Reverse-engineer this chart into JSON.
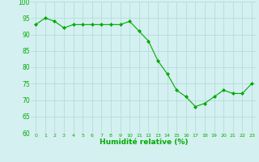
{
  "x": [
    0,
    1,
    2,
    3,
    4,
    5,
    6,
    7,
    8,
    9,
    10,
    11,
    12,
    13,
    14,
    15,
    16,
    17,
    18,
    19,
    20,
    21,
    22,
    23
  ],
  "y": [
    93,
    95,
    94,
    92,
    93,
    93,
    93,
    93,
    93,
    93,
    94,
    91,
    88,
    82,
    78,
    73,
    71,
    68,
    69,
    71,
    73,
    72,
    72,
    75
  ],
  "line_color": "#00aa00",
  "marker_color": "#00aa00",
  "bg_color": "#d4f0f0",
  "grid_color": "#b0d8d8",
  "xlabel": "Humidité relative (%)",
  "xlabel_color": "#00aa00",
  "tick_color": "#00aa00",
  "ylim": [
    60,
    100
  ],
  "xlim": [
    -0.5,
    23.5
  ],
  "yticks": [
    60,
    65,
    70,
    75,
    80,
    85,
    90,
    95,
    100
  ],
  "xticks": [
    0,
    1,
    2,
    3,
    4,
    5,
    6,
    7,
    8,
    9,
    10,
    11,
    12,
    13,
    14,
    15,
    16,
    17,
    18,
    19,
    20,
    21,
    22,
    23
  ]
}
